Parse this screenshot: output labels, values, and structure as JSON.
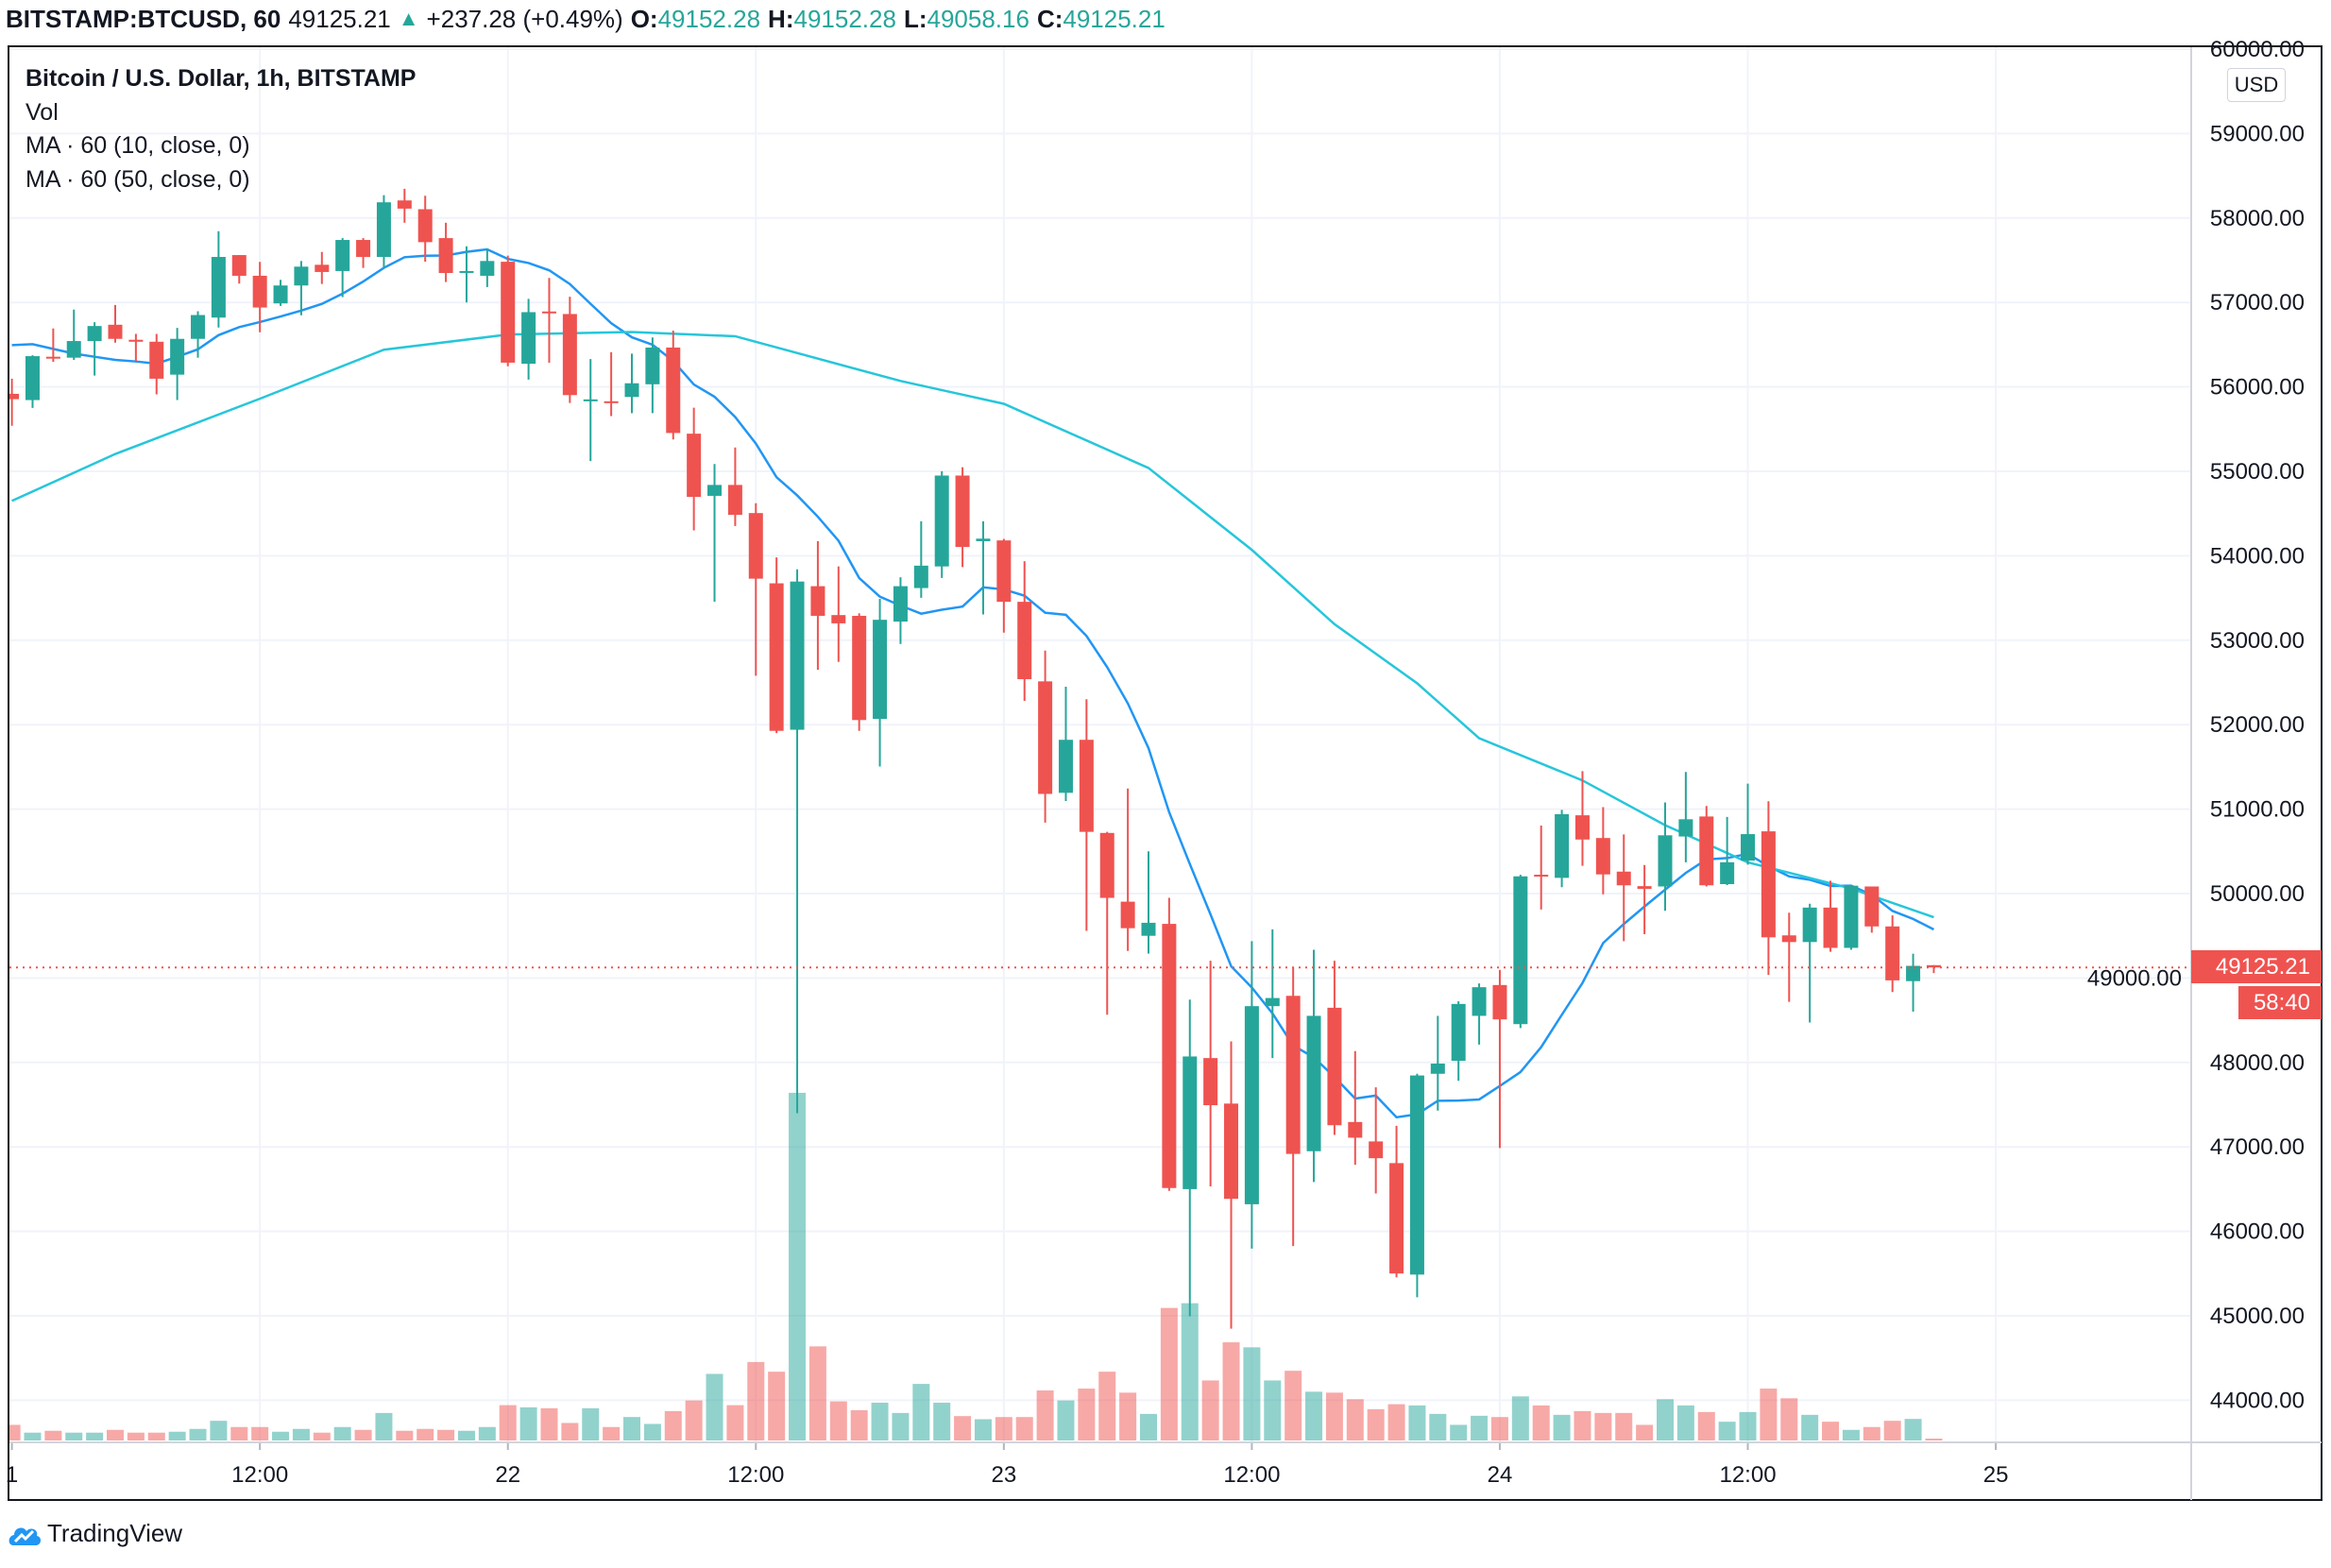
{
  "header": {
    "symbol": "BITSTAMP:BTCUSD, 60",
    "last": "49125.21",
    "change": "+237.28 (+0.49%)",
    "o_label": "O:",
    "o": "49152.28",
    "h_label": "H:",
    "h": "49152.28",
    "l_label": "L:",
    "l": "49058.16",
    "c_label": "C:",
    "c": "49125.21"
  },
  "legend": {
    "title": "Bitcoin / U.S. Dollar, 1h, BITSTAMP",
    "vol": "Vol",
    "ma10": "MA · 60 (10, close, 0)",
    "ma50": "MA · 60 (50, close, 0)"
  },
  "currency": "USD",
  "price_label": "49125.21",
  "countdown": "58:40",
  "brand": "TradingView",
  "colors": {
    "up": "#26a69a",
    "down": "#ef5350",
    "ma10": "#2196f3",
    "ma50": "#26c6da",
    "grid": "#f0f3fa"
  },
  "chart_data": {
    "type": "candlestick",
    "title": "Bitcoin / U.S. Dollar, 1h, BITSTAMP",
    "ylim": [
      43700,
      60000
    ],
    "yticks": [
      "60000.00",
      "59000.00",
      "58000.00",
      "57000.00",
      "56000.00",
      "55000.00",
      "54000.00",
      "53000.00",
      "52000.00",
      "51000.00",
      "50000.00",
      "49000.00",
      "48000.00",
      "47000.00",
      "46000.00",
      "45000.00",
      "44000.00"
    ],
    "ytick_values": [
      60000,
      59000,
      58000,
      57000,
      56000,
      55000,
      54000,
      53000,
      52000,
      51000,
      50000,
      49000,
      48000,
      47000,
      46000,
      45000,
      44000
    ],
    "xticks": [
      {
        "label": "1",
        "index": 0
      },
      {
        "label": "12:00",
        "index": 12
      },
      {
        "label": "22",
        "index": 24
      },
      {
        "label": "12:00",
        "index": 36
      },
      {
        "label": "23",
        "index": 48
      },
      {
        "label": "12:00",
        "index": 60
      },
      {
        "label": "24",
        "index": 72
      },
      {
        "label": "12:00",
        "index": 84
      },
      {
        "label": "25",
        "index": 96
      }
    ],
    "current_price": 49125.21,
    "ohlc": [
      [
        55918,
        56097,
        55540,
        55855
      ],
      [
        55844,
        56375,
        55751,
        56364
      ],
      [
        56357,
        56692,
        56297,
        56342
      ],
      [
        56346,
        56915,
        56320,
        56543
      ],
      [
        56543,
        56766,
        56134,
        56721
      ],
      [
        56736,
        56970,
        56524,
        56569
      ],
      [
        56558,
        56628,
        56301,
        56535
      ],
      [
        56535,
        56628,
        55911,
        56097
      ],
      [
        56145,
        56699,
        55844,
        56569
      ],
      [
        56569,
        56896,
        56346,
        56851
      ],
      [
        56821,
        57844,
        56703,
        57539
      ],
      [
        57561,
        57561,
        57223,
        57316
      ],
      [
        57316,
        57480,
        56647,
        56940
      ],
      [
        56989,
        57268,
        56959,
        57201
      ],
      [
        57201,
        57491,
        56848,
        57424
      ],
      [
        57446,
        57598,
        57219,
        57361
      ],
      [
        57372,
        57762,
        57063,
        57740
      ],
      [
        57740,
        57762,
        57409,
        57539
      ],
      [
        57539,
        58271,
        57405,
        58186
      ],
      [
        58208,
        58346,
        57944,
        58111
      ],
      [
        58104,
        58264,
        57483,
        57714
      ],
      [
        57762,
        57944,
        57242,
        57349
      ],
      [
        57360,
        57665,
        57000,
        57372
      ],
      [
        57316,
        57640,
        57182,
        57491
      ],
      [
        57482,
        57555,
        56244,
        56287
      ],
      [
        56274,
        57043,
        56086,
        56885
      ],
      [
        56893,
        57290,
        56287,
        56876
      ],
      [
        56863,
        57068,
        55809,
        55903
      ],
      [
        55840,
        56330,
        55121,
        55852
      ],
      [
        55830,
        56411,
        55655,
        55817
      ],
      [
        55881,
        56394,
        55689,
        56043
      ],
      [
        56031,
        56586,
        55689,
        56466
      ],
      [
        56466,
        56667,
        55377,
        55454
      ],
      [
        55446,
        55753,
        54301,
        54698
      ],
      [
        54710,
        55087,
        53456,
        54839
      ],
      [
        54839,
        55283,
        54353,
        54485
      ],
      [
        54506,
        54622,
        52580,
        53729
      ],
      [
        53674,
        53981,
        51900,
        51927
      ],
      [
        51940,
        53840,
        47400,
        53695
      ],
      [
        53640,
        54173,
        52649,
        53289
      ],
      [
        53298,
        53874,
        52743,
        53200
      ],
      [
        53289,
        53319,
        51927,
        52055
      ],
      [
        52068,
        53490,
        51504,
        53242
      ],
      [
        53221,
        53746,
        52956,
        53640
      ],
      [
        53618,
        54408,
        53503,
        53883
      ],
      [
        53874,
        55002,
        53738,
        54950
      ],
      [
        54950,
        55049,
        53866,
        54105
      ],
      [
        54173,
        54408,
        53306,
        54203
      ],
      [
        54182,
        54200,
        53090,
        53455
      ],
      [
        53455,
        53936,
        52282,
        52539
      ],
      [
        52513,
        52878,
        50840,
        51180
      ],
      [
        51193,
        52449,
        51096,
        51821
      ],
      [
        51821,
        52302,
        49558,
        50731
      ],
      [
        50718,
        50731,
        48565,
        49949
      ],
      [
        49904,
        51244,
        49321,
        49590
      ],
      [
        49500,
        50500,
        49289,
        49654
      ],
      [
        49641,
        49949,
        46480,
        46513
      ],
      [
        46500,
        48744,
        44994,
        48071
      ],
      [
        48052,
        49205,
        46532,
        47494
      ],
      [
        47513,
        48250,
        44847,
        46385
      ],
      [
        46321,
        49436,
        45795,
        48667
      ],
      [
        48667,
        49577,
        48052,
        48763
      ],
      [
        48789,
        49128,
        45827,
        46917
      ],
      [
        46949,
        49334,
        46584,
        48552
      ],
      [
        48648,
        49205,
        47142,
        47257
      ],
      [
        47295,
        48135,
        46789,
        47109
      ],
      [
        47065,
        47705,
        46449,
        46866
      ],
      [
        46808,
        47250,
        45456,
        45501
      ],
      [
        45488,
        47866,
        45219,
        47846
      ],
      [
        47866,
        48552,
        47430,
        47987
      ],
      [
        48020,
        48725,
        47782,
        48693
      ],
      [
        48552,
        48936,
        48212,
        48891
      ],
      [
        48917,
        49096,
        46987,
        48510
      ],
      [
        48454,
        50223,
        48408,
        50204
      ],
      [
        50223,
        50806,
        49811,
        50204
      ],
      [
        50186,
        50991,
        50075,
        50940
      ],
      [
        50927,
        51450,
        50329,
        50640
      ],
      [
        50658,
        51024,
        49991,
        50227
      ],
      [
        50260,
        50700,
        49436,
        50098
      ],
      [
        50088,
        50338,
        49519,
        50056
      ],
      [
        50084,
        51079,
        49797,
        50690
      ],
      [
        50676,
        51440,
        50371,
        50880
      ],
      [
        50913,
        51038,
        50084,
        50098
      ],
      [
        50112,
        50908,
        50100,
        50371
      ],
      [
        50390,
        51302,
        50343,
        50704
      ],
      [
        50737,
        51093,
        49037,
        49482
      ],
      [
        49505,
        49774,
        48718,
        49426
      ],
      [
        49426,
        49880,
        48473,
        49834
      ],
      [
        49834,
        50153,
        49311,
        49357
      ],
      [
        49357,
        50093,
        49334,
        50093
      ],
      [
        50084,
        50084,
        49537,
        49611
      ],
      [
        49611,
        49741,
        48834,
        48972
      ],
      [
        48963,
        49288,
        48602,
        49144
      ],
      [
        49152.28,
        49152.28,
        49058.16,
        49125.21
      ]
    ],
    "volume_relative": [
      50,
      25,
      31,
      25,
      25,
      34,
      25,
      25,
      28,
      37,
      63,
      43,
      43,
      28,
      37,
      25,
      43,
      34,
      88,
      31,
      37,
      34,
      31,
      43,
      113,
      106,
      103,
      56,
      103,
      43,
      75,
      53,
      94,
      128,
      213,
      113,
      251,
      220,
      1112,
      301,
      125,
      97,
      121,
      88,
      181,
      121,
      78,
      68,
      75,
      75,
      160,
      128,
      166,
      220,
      153,
      85,
      424,
      439,
      192,
      314,
      298,
      192,
      223,
      156,
      153,
      132,
      100,
      116,
      112,
      85,
      50,
      79,
      75,
      141,
      112,
      82,
      94,
      88,
      88,
      50,
      132,
      112,
      91,
      60,
      91,
      166,
      135,
      82,
      60,
      34,
      43,
      63,
      69,
      6
    ],
    "ma10_prefix": [
      56495,
      56506,
      56450,
      56394,
      56357,
      56320,
      56301,
      56275,
      56357
    ],
    "ma50_points": [
      [
        0,
        54650
      ],
      [
        5,
        55205
      ],
      [
        12,
        55860
      ],
      [
        18,
        56440
      ],
      [
        24,
        56620
      ],
      [
        30,
        56650
      ],
      [
        35,
        56600
      ],
      [
        43,
        56070
      ],
      [
        48,
        55800
      ],
      [
        55,
        55040
      ],
      [
        60,
        54070
      ],
      [
        64,
        53190
      ],
      [
        68,
        52490
      ],
      [
        71,
        51840
      ],
      [
        76,
        51340
      ],
      [
        80,
        50810
      ],
      [
        84,
        50370
      ],
      [
        89,
        50060
      ],
      [
        93,
        49720
      ]
    ]
  }
}
